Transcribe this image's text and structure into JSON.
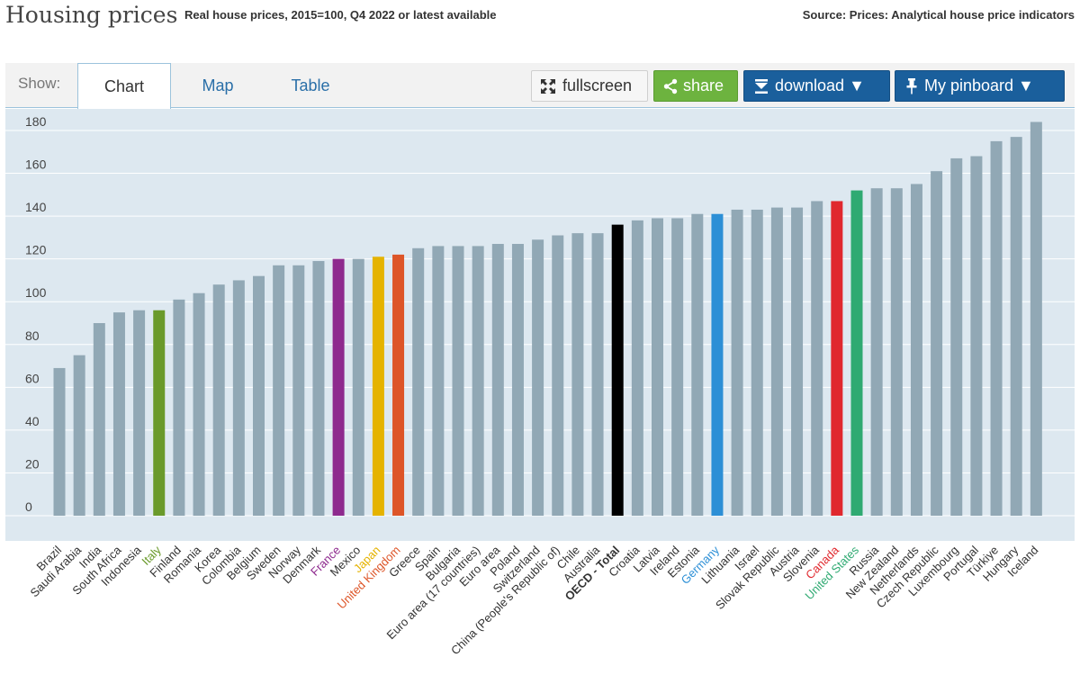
{
  "header": {
    "title": "Housing prices",
    "subtitle": "Real house prices, 2015=100, Q4 2022 or latest available",
    "source": "Source: Prices: Analytical house price indicators"
  },
  "toolbar": {
    "show_label": "Show:",
    "tabs": [
      {
        "label": "Chart",
        "active": true
      },
      {
        "label": "Map",
        "active": false
      },
      {
        "label": "Table",
        "active": false
      }
    ],
    "fullscreen_label": "fullscreen",
    "share_label": "share",
    "download_label": "download ▼",
    "pinboard_label": "My pinboard ▼"
  },
  "colors": {
    "default_bar": "#91a8b5",
    "plot_bg": "#dde8f0",
    "grid": "#ffffff",
    "italy": "#6a9a2b",
    "france": "#8e2a8e",
    "japan": "#e5b300",
    "united_kingdom": "#dd5528",
    "oecd_total": "#000000",
    "germany": "#2c8fd6",
    "canada": "#e0282e",
    "united_states": "#2faa72"
  },
  "chart_data": {
    "type": "bar",
    "title": "Housing prices",
    "subtitle": "Real house prices, 2015=100, Q4 2022 or latest available",
    "ylim": [
      0,
      180
    ],
    "yticks": [
      0,
      20,
      40,
      60,
      80,
      100,
      120,
      140,
      160,
      180
    ],
    "grid": true,
    "categories": [
      "Brazil",
      "Saudi Arabia",
      "India",
      "South Africa",
      "Indonesia",
      "Italy",
      "Finland",
      "Romania",
      "Korea",
      "Colombia",
      "Belgium",
      "Sweden",
      "Norway",
      "Denmark",
      "France",
      "Mexico",
      "Japan",
      "United Kingdom",
      "Greece",
      "Spain",
      "Bulgaria",
      "Euro area (17 countries)",
      "Euro area",
      "Poland",
      "Switzerland",
      "China (People's Republic of)",
      "Chile",
      "Australia",
      "OECD - Total",
      "Croatia",
      "Latvia",
      "Ireland",
      "Estonia",
      "Germany",
      "Lithuania",
      "Israel",
      "Slovak Republic",
      "Austria",
      "Slovenia",
      "Canada",
      "United States",
      "Russia",
      "New Zealand",
      "Netherlands",
      "Czech Republic",
      "Luxembourg",
      "Portugal",
      "Türkiye",
      "Hungary",
      "Iceland"
    ],
    "values": [
      69,
      75,
      90,
      95,
      96,
      96,
      101,
      104,
      108,
      110,
      112,
      117,
      117,
      119,
      120,
      120,
      121,
      122,
      125,
      126,
      126,
      126,
      127,
      127,
      129,
      131,
      132,
      132,
      136,
      138,
      139,
      139,
      141,
      141,
      143,
      143,
      144,
      144,
      147,
      147,
      152,
      153,
      153,
      155,
      161,
      167,
      168,
      175,
      177,
      184
    ],
    "highlights": {
      "Italy": "#6a9a2b",
      "France": "#8e2a8e",
      "Japan": "#e5b300",
      "United Kingdom": "#dd5528",
      "OECD - Total": "#000000",
      "Germany": "#2c8fd6",
      "Canada": "#e0282e",
      "United States": "#2faa72"
    },
    "xlabel": "",
    "ylabel": ""
  }
}
